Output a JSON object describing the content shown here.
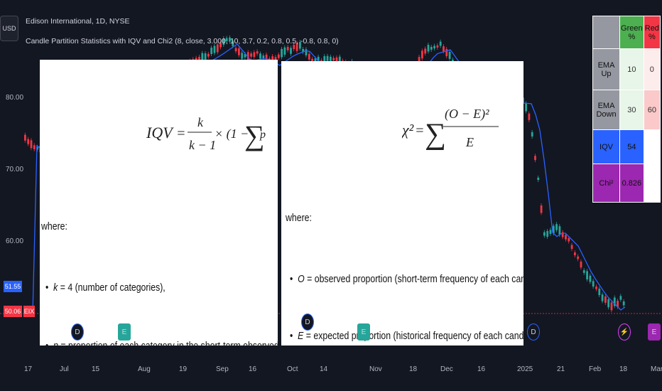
{
  "header": {
    "symbol_box": "USD",
    "title": "Edison International, 1D, NYSE",
    "indicator": "Candle Partition Statistics with IQV and Chi2 (8, close, 3.000, 10, 3.7, 0.2, 0.8, 0.5, -0.8, 0.8, 0)"
  },
  "colors": {
    "green": "#26a69a",
    "red": "#f23645",
    "ema": "#2962ff",
    "bg": "#131722"
  },
  "y_axis": [
    "80.00",
    "70.00",
    "60.00"
  ],
  "x_axis": [
    "17",
    "Jul",
    "15",
    "Aug",
    "19",
    "Sep",
    "16",
    "Oct",
    "14",
    "Nov",
    "18",
    "Dec",
    "16",
    "2025",
    "21",
    "Feb",
    "18",
    "Mar"
  ],
  "price_tags": {
    "ema": "51.55",
    "close": "50.06",
    "close_flag": "EIX"
  },
  "left_panel": {
    "where": "where:",
    "bullet1_var": "k",
    "bullet1": " = 4 (number of categories),",
    "bullet2": "= proportion of each category in the short-term observed sample"
  },
  "right_panel": {
    "where": "where:",
    "bullet1_var": "O",
    "bullet1": " = observed proportion (short-term frequency of each candle type),",
    "bullet2": "= expected proportion (historical frequency of each candle type),"
  },
  "table": {
    "headers": [
      "",
      "Green %",
      "Red %"
    ],
    "rows": [
      {
        "label": "EMA Up",
        "green": "10",
        "red": "0"
      },
      {
        "label": "EMA Down",
        "green": "30",
        "red": "60"
      }
    ],
    "iqv_label": "IQV",
    "iqv_value": "54",
    "chi_label": "Chi²",
    "chi_value": "0.826"
  },
  "event_markers": [
    {
      "type": "dividend",
      "letter": "D"
    },
    {
      "type": "earnings",
      "letter": "E"
    },
    {
      "type": "dividend",
      "letter": "D"
    },
    {
      "type": "earnings",
      "letter": "E"
    },
    {
      "type": "dividend",
      "letter": "D"
    },
    {
      "type": "split",
      "letter": "⚡"
    },
    {
      "type": "earnings",
      "letter": "E"
    }
  ]
}
